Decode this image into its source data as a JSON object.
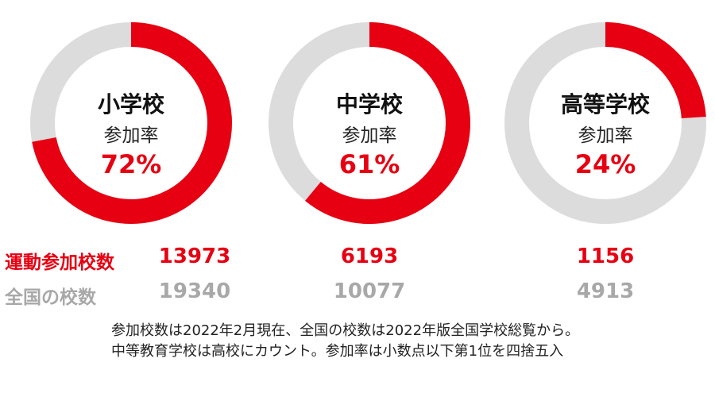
{
  "colors": {
    "participating": "#e60012",
    "remaining": "#dcdcdc",
    "label_gray": "#a8a8a8",
    "text": "#222222"
  },
  "chart_data": {
    "type": "pie",
    "variant": "donut",
    "charts": [
      {
        "title": "小学校",
        "label": "参加率",
        "value_label": "72%",
        "value": 72,
        "participating": 13973,
        "total": 19340
      },
      {
        "title": "中学校",
        "label": "参加率",
        "value_label": "61%",
        "value": 61,
        "participating": 6193,
        "total": 10077
      },
      {
        "title": "高等学校",
        "label": "参加率",
        "value_label": "24%",
        "value": 24,
        "participating": 1156,
        "total": 4913
      }
    ]
  },
  "rows": {
    "participating_label": "運動参加校数",
    "total_label": "全国の校数",
    "participating": [
      "13973",
      "6193",
      "1156"
    ],
    "total": [
      "19340",
      "10077",
      "4913"
    ]
  },
  "footnote": {
    "line1": "参加校数は2022年2月現在、全国の校数は2022年版全国学校総覧から。",
    "line2": "中等教育学校は高校にカウント。参加率は小数点以下第1位を四捨五入"
  }
}
